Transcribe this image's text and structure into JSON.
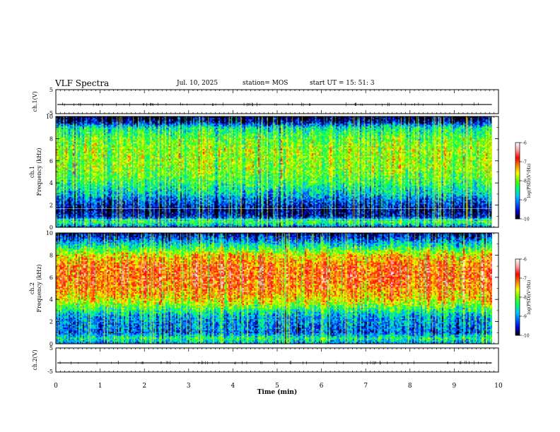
{
  "header": {
    "title": "VLF Spectra",
    "date": "Jul. 10, 2025",
    "station": "station= MOS",
    "start": "start  UT  =   15: 51: 3"
  },
  "chart_data": {
    "type": "heatmap",
    "x_axis": {
      "label": "Time (min)",
      "range": [
        0,
        10
      ],
      "ticks": [
        "0",
        "1",
        "2",
        "3",
        "4",
        "5",
        "6",
        "7",
        "8",
        "9",
        "10"
      ],
      "data_end_min": 9.85
    },
    "panels": [
      {
        "id": "ch1-waveform",
        "type": "line",
        "ylabel": "ch.1(V)",
        "ylim": [
          -5,
          5
        ],
        "ticks": [
          "5",
          "-5"
        ],
        "baseline": -1.2
      },
      {
        "id": "ch1-spectrogram",
        "type": "heatmap",
        "ylabel_line1": "ch.1",
        "ylabel_line2": "Frequency (kHz)",
        "ylim": [
          0,
          10
        ],
        "ticks": [
          "0",
          "2",
          "4",
          "6",
          "8",
          "10"
        ],
        "profile_khz": [
          0,
          0.5,
          1,
          1.5,
          2,
          2.5,
          3,
          4,
          5,
          6,
          7,
          8,
          9,
          9.5,
          10
        ],
        "profile_log_psd": [
          -9.3,
          -8.2,
          -9.6,
          -9.8,
          -9.5,
          -9.2,
          -8.8,
          -8.3,
          -8.0,
          -7.9,
          -7.9,
          -8.1,
          -8.6,
          -9.7,
          -10.0
        ]
      },
      {
        "id": "ch2-spectrogram",
        "type": "heatmap",
        "ylabel_line1": "ch.2",
        "ylabel_line2": "Frequency (kHz)",
        "ylim": [
          0,
          10
        ],
        "ticks": [
          "0",
          "2",
          "4",
          "6",
          "8",
          "10"
        ],
        "profile_khz": [
          0,
          0.5,
          1,
          1.5,
          2,
          2.5,
          3,
          3.5,
          4,
          5,
          6,
          7,
          8,
          8.5,
          9,
          9.5,
          10
        ],
        "profile_log_psd": [
          -9.0,
          -8.4,
          -9.2,
          -9.1,
          -9.0,
          -8.9,
          -8.4,
          -7.9,
          -7.5,
          -7.1,
          -6.9,
          -7.0,
          -7.5,
          -8.1,
          -8.7,
          -9.3,
          -9.8
        ]
      },
      {
        "id": "ch2-waveform",
        "type": "line",
        "ylabel": "ch.2(V)",
        "ylim": [
          -5,
          5
        ],
        "ticks": [
          "5",
          "-5"
        ],
        "baseline": -1.2
      }
    ],
    "colorbar": {
      "label": "log(PSD)(V²/Hz)",
      "range": [
        -10,
        -6
      ],
      "ticks": [
        "-6",
        "-7",
        "-8",
        "-9",
        "-10"
      ],
      "colors": [
        "#000000",
        "#0000c8",
        "#0064ff",
        "#00c8ff",
        "#00ff64",
        "#64ff00",
        "#ffff00",
        "#ff8000",
        "#ff0000",
        "#ffa0a0",
        "#ffffff"
      ]
    }
  }
}
